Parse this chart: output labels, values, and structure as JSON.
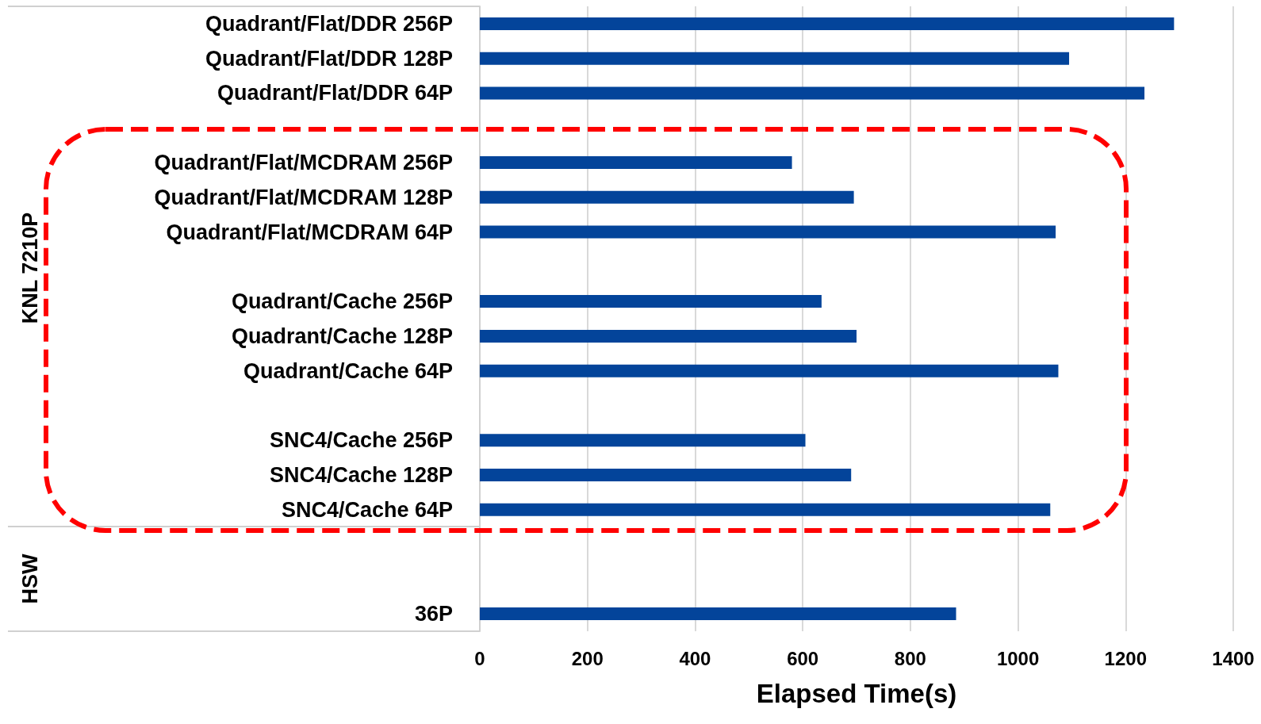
{
  "chart_data": {
    "type": "bar",
    "orientation": "horizontal",
    "xlabel": "Elapsed Time(s)",
    "categories": [
      "Quadrant/Flat/DDR 256P",
      "Quadrant/Flat/DDR 128P",
      "Quadrant/Flat/DDR 64P",
      null,
      "Quadrant/Flat/MCDRAM 256P",
      "Quadrant/Flat/MCDRAM 128P",
      "Quadrant/Flat/MCDRAM 64P",
      null,
      "Quadrant/Cache 256P",
      "Quadrant/Cache 128P",
      "Quadrant/Cache 64P",
      null,
      "SNC4/Cache 256P",
      "SNC4/Cache 128P",
      "SNC4/Cache 64P",
      null,
      null,
      "36P"
    ],
    "values": [
      1290,
      1095,
      1235,
      null,
      580,
      695,
      1070,
      null,
      635,
      700,
      1075,
      null,
      605,
      690,
      1060,
      null,
      null,
      885
    ],
    "color": "#03449a",
    "xlim": [
      0,
      1400
    ],
    "xticks": [
      0,
      200,
      400,
      600,
      800,
      1000,
      1200,
      1400
    ],
    "grid": "x",
    "annotations": [
      "KNL 7210P",
      "HSW"
    ]
  }
}
